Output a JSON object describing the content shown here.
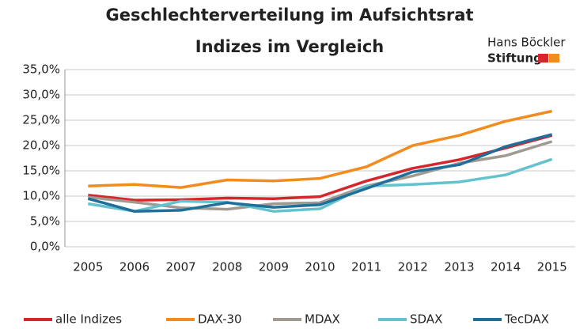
{
  "logo": {
    "line1": "Hans Böckler",
    "line2": "Stiftung"
  },
  "chart_data": {
    "type": "line",
    "title": "Geschlechterverteilung im Aufsichtsrat",
    "subtitle": "Indizes im Vergleich",
    "categories": [
      "2005",
      "2006",
      "2007",
      "2008",
      "2009",
      "2010",
      "2011",
      "2012",
      "2013",
      "2014",
      "2015"
    ],
    "series": [
      {
        "name": "alle Indizes",
        "color": "#d7262b",
        "values": [
          10.2,
          9.2,
          9.3,
          9.6,
          9.5,
          9.9,
          13.0,
          15.5,
          17.2,
          19.5,
          22.0
        ]
      },
      {
        "name": "DAX-30",
        "color": "#f28c1e",
        "values": [
          12.0,
          12.3,
          11.7,
          13.2,
          13.0,
          13.5,
          15.8,
          20.0,
          22.0,
          24.8,
          26.8
        ]
      },
      {
        "name": "MDAX",
        "color": "#a09a90",
        "values": [
          9.8,
          8.8,
          7.7,
          7.4,
          8.5,
          8.7,
          12.0,
          14.0,
          16.5,
          18.0,
          20.8
        ]
      },
      {
        "name": "SDAX",
        "color": "#64c2cf",
        "values": [
          8.5,
          7.0,
          9.0,
          8.8,
          7.0,
          7.5,
          12.0,
          12.3,
          12.8,
          14.2,
          17.3
        ]
      },
      {
        "name": "TecDAX",
        "color": "#1f6f9a",
        "values": [
          9.5,
          7.0,
          7.2,
          8.7,
          7.8,
          8.3,
          11.5,
          14.8,
          16.2,
          19.8,
          22.2
        ]
      }
    ],
    "ylim": [
      0,
      35
    ],
    "yticks": [
      {
        "value": 0,
        "label": "0,0%"
      },
      {
        "value": 5,
        "label": "5,0%"
      },
      {
        "value": 10,
        "label": "10,0%"
      },
      {
        "value": 15,
        "label": "15,0%"
      },
      {
        "value": 20,
        "label": "20,0%"
      },
      {
        "value": 25,
        "label": "25,0%"
      },
      {
        "value": 30,
        "label": "30,0%"
      },
      {
        "value": 35,
        "label": "35,0%"
      }
    ],
    "grid": true,
    "legend": "bottom"
  }
}
